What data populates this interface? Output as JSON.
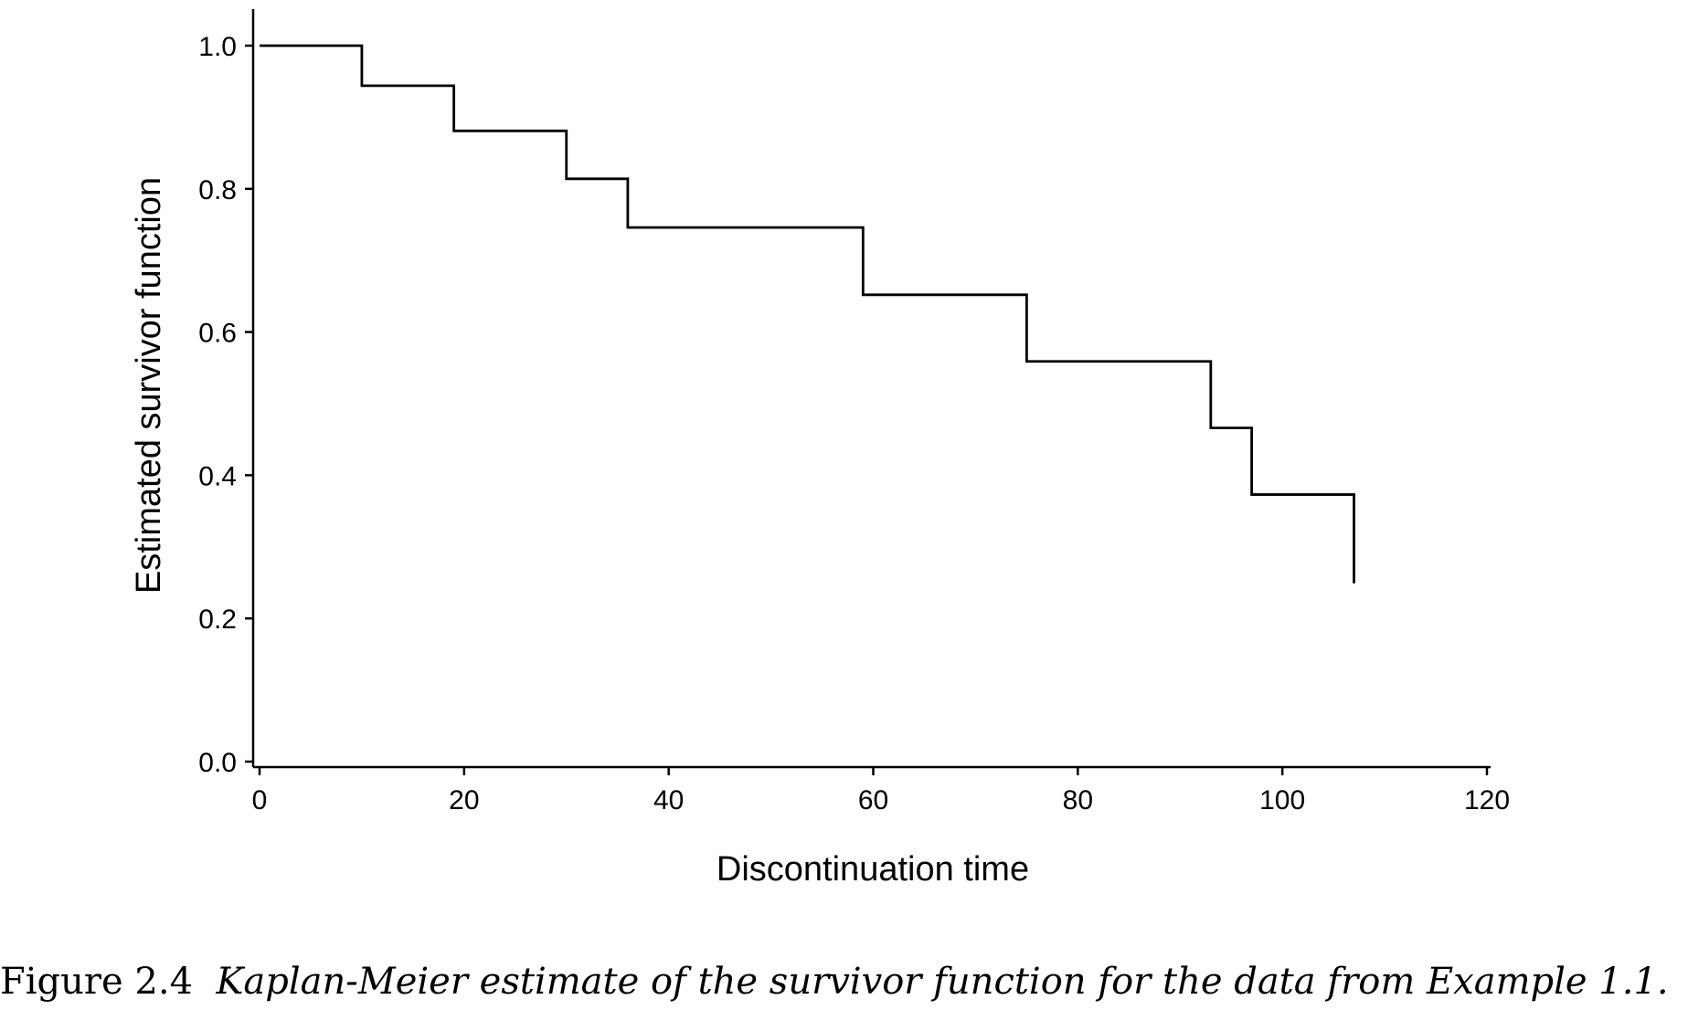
{
  "chart_data": {
    "type": "line",
    "step": true,
    "xlabel": "Discontinuation time",
    "ylabel": "Estimated survivor function",
    "xlim": [
      0,
      120
    ],
    "ylim": [
      0,
      1.0
    ],
    "x_ticks": [
      0,
      20,
      40,
      60,
      80,
      100,
      120
    ],
    "x_tick_labels": [
      "0",
      "20",
      "40",
      "60",
      "80",
      "100",
      "120"
    ],
    "y_ticks": [
      0.0,
      0.2,
      0.4,
      0.6,
      0.8,
      1.0
    ],
    "y_tick_labels": [
      "0.0",
      "0.2",
      "0.4",
      "0.6",
      "0.8",
      "1.0"
    ],
    "grid": false,
    "legend": "none",
    "line_color": "#000000",
    "series": [
      {
        "x": [
          0,
          10,
          19,
          30,
          36,
          59,
          75,
          93,
          97,
          107
        ],
        "y": [
          1.0,
          0.944,
          0.881,
          0.814,
          0.746,
          0.652,
          0.559,
          0.466,
          0.373,
          0.249
        ]
      }
    ]
  },
  "caption": {
    "label": "Figure 2.4",
    "text": "Kaplan-Meier estimate of the survivor function for the data from Example 1.1."
  }
}
